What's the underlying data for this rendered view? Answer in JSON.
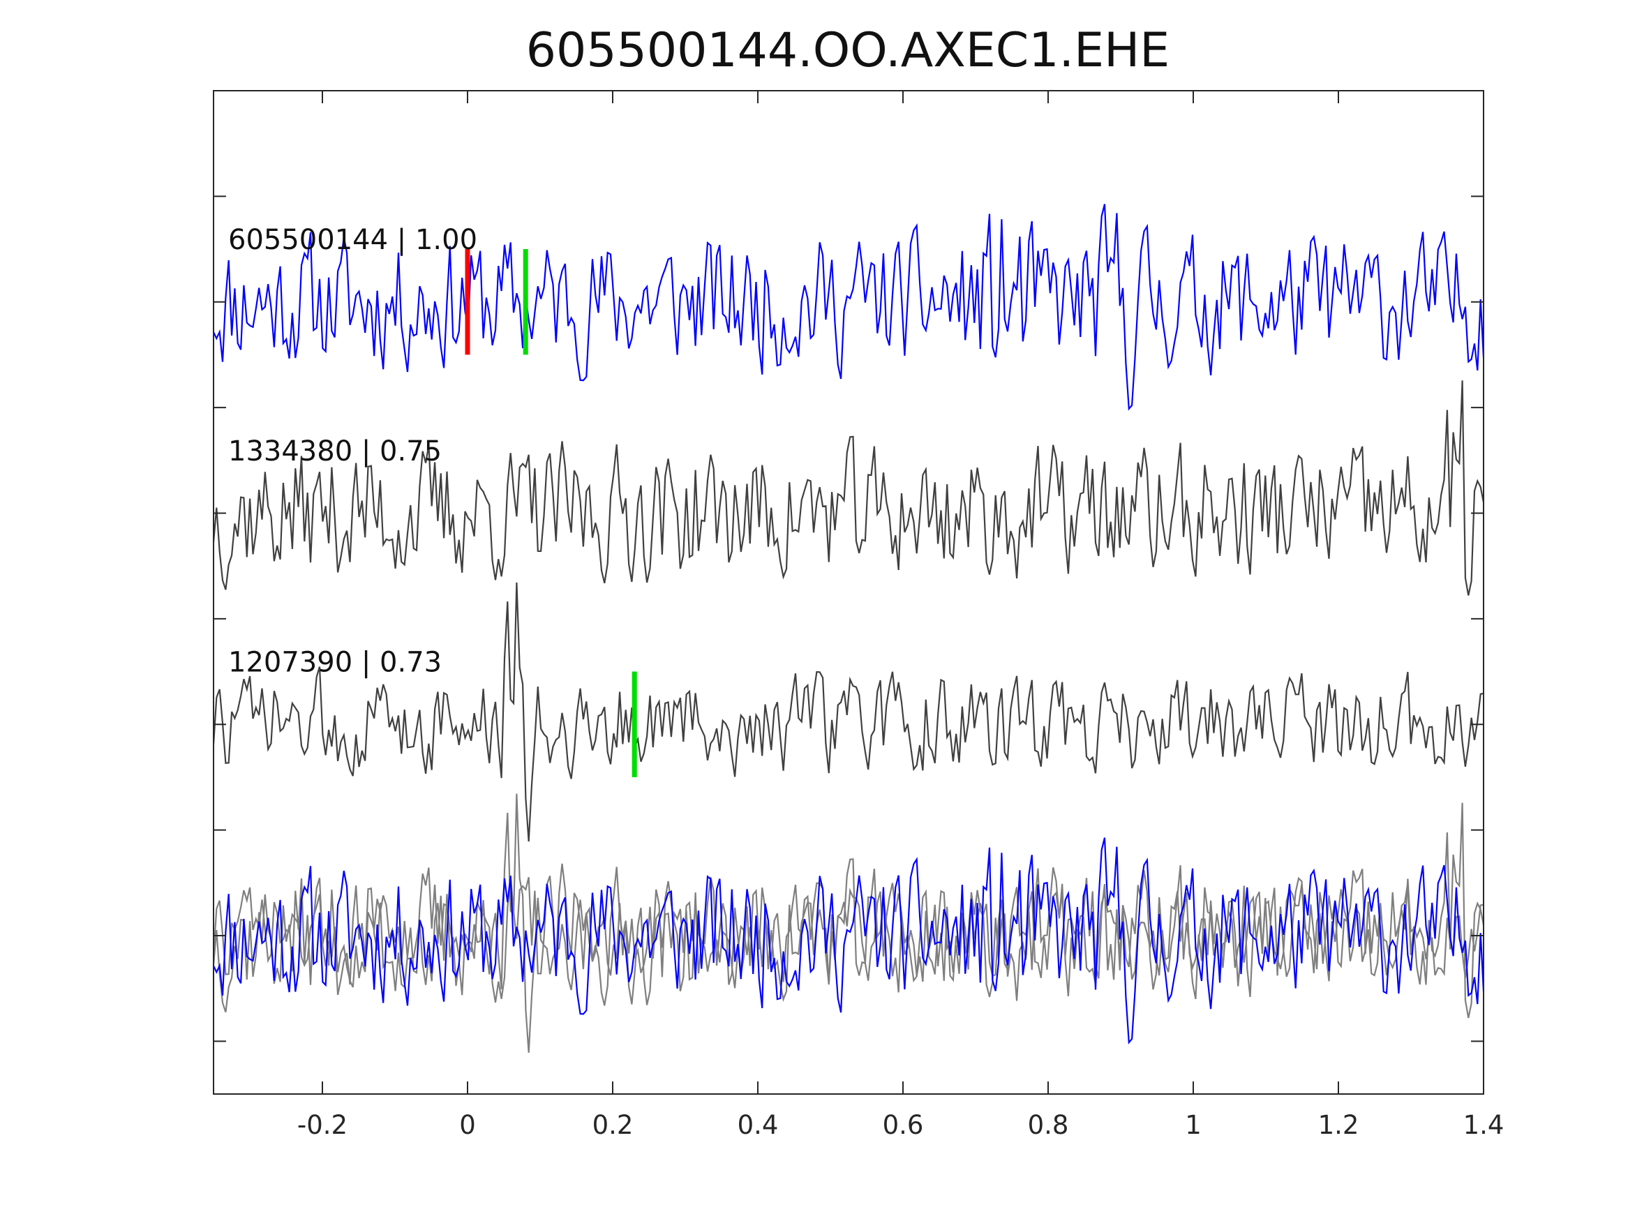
{
  "chart_data": {
    "type": "line",
    "title": "605500144.OO.AXEC1.EHE",
    "xlabel": "",
    "ylabel": "",
    "xlim": [
      -0.35,
      1.4
    ],
    "x_ticks": [
      -0.2,
      0,
      0.2,
      0.4,
      0.6,
      0.8,
      1,
      1.2,
      1.4
    ],
    "x_tick_labels": [
      "-0.2",
      "0",
      "0.2",
      "0.4",
      "0.6",
      "0.8",
      "1",
      "1.2",
      "1.4"
    ],
    "y_ticks": [
      1,
      2,
      3,
      4,
      5,
      6,
      7,
      8,
      9
    ],
    "grid": false,
    "traces": [
      {
        "label": "605500144 | 1.00",
        "station": "605500144",
        "correlation": 1.0,
        "color": "#0000ff",
        "baseline": 8,
        "picks": [
          {
            "time": 0.0,
            "color": "#ff0000"
          },
          {
            "time": 0.08,
            "color": "#00dd00"
          }
        ]
      },
      {
        "label": "1334380 | 0.75",
        "station": "1334380",
        "correlation": 0.75,
        "color": "#404040",
        "baseline": 6,
        "picks": []
      },
      {
        "label": "1207390 | 0.73",
        "station": "1207390",
        "correlation": 0.73,
        "color": "#404040",
        "baseline": 4,
        "picks": [
          {
            "time": 0.23,
            "color": "#00dd00"
          }
        ]
      },
      {
        "label": "",
        "station": "overlay",
        "baseline": 2,
        "overlay": true,
        "colors": [
          "#0000ff",
          "#7f7f7f",
          "#7f7f7f"
        ]
      }
    ]
  }
}
